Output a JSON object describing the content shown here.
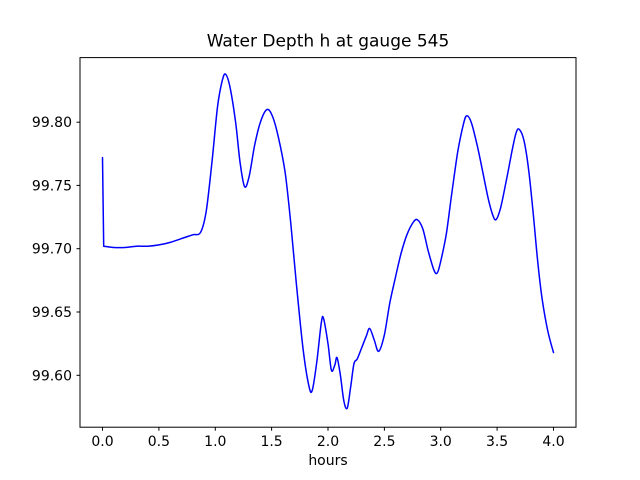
{
  "figure": {
    "background": "#ffffff",
    "frame_color": "#000000",
    "text_color": "#000000"
  },
  "chart_data": {
    "type": "line",
    "title": "Water Depth h at gauge 545",
    "xlabel": "hours",
    "ylabel": "",
    "grid": false,
    "legend": "none",
    "xlim": [
      -0.2,
      4.2
    ],
    "ylim": [
      99.559,
      99.851
    ],
    "xticks": [
      0.0,
      0.5,
      1.0,
      1.5,
      2.0,
      2.5,
      3.0,
      3.5,
      4.0
    ],
    "xtick_labels": [
      "0.0",
      "0.5",
      "1.0",
      "1.5",
      "2.0",
      "2.5",
      "3.0",
      "3.5",
      "4.0"
    ],
    "yticks": [
      99.6,
      99.65,
      99.7,
      99.75,
      99.8
    ],
    "ytick_labels": [
      "99.60",
      "99.65",
      "99.70",
      "99.75",
      "99.80"
    ],
    "series": [
      {
        "name": "water-depth-h",
        "color": "#0000ff",
        "line_width": 1.5,
        "x": [
          0.0,
          0.01,
          0.1,
          0.2,
          0.3,
          0.4,
          0.5,
          0.6,
          0.7,
          0.8,
          0.87,
          0.92,
          0.97,
          1.02,
          1.06,
          1.09,
          1.13,
          1.18,
          1.22,
          1.26,
          1.3,
          1.35,
          1.4,
          1.46,
          1.51,
          1.56,
          1.62,
          1.67,
          1.72,
          1.78,
          1.83,
          1.86,
          1.9,
          1.94,
          1.96,
          2.0,
          2.03,
          2.06,
          2.08,
          2.11,
          2.14,
          2.17,
          2.2,
          2.23,
          2.26,
          2.3,
          2.34,
          2.37,
          2.41,
          2.45,
          2.5,
          2.55,
          2.6,
          2.65,
          2.7,
          2.75,
          2.79,
          2.84,
          2.89,
          2.94,
          2.97,
          3.0,
          3.05,
          3.1,
          3.15,
          3.2,
          3.23,
          3.27,
          3.32,
          3.37,
          3.42,
          3.46,
          3.49,
          3.53,
          3.58,
          3.63,
          3.67,
          3.7,
          3.74,
          3.78,
          3.82,
          3.86,
          3.9,
          3.95,
          4.0
        ],
        "y": [
          99.772,
          99.702,
          99.701,
          99.701,
          99.702,
          99.702,
          99.703,
          99.705,
          99.708,
          99.711,
          99.713,
          99.73,
          99.768,
          99.812,
          99.832,
          99.838,
          99.828,
          99.8,
          99.768,
          99.749,
          99.757,
          99.782,
          99.8,
          99.81,
          99.804,
          99.788,
          99.76,
          99.72,
          99.672,
          99.62,
          99.592,
          99.588,
          99.61,
          99.641,
          99.645,
          99.625,
          99.604,
          99.608,
          99.614,
          99.6,
          99.58,
          99.574,
          99.59,
          99.609,
          99.613,
          99.622,
          99.631,
          99.637,
          99.628,
          99.619,
          99.632,
          99.658,
          99.678,
          99.697,
          99.711,
          99.72,
          99.723,
          99.716,
          99.698,
          99.683,
          99.681,
          99.69,
          99.712,
          99.745,
          99.776,
          99.798,
          99.805,
          99.8,
          99.783,
          99.762,
          99.74,
          99.727,
          99.723,
          99.732,
          99.753,
          99.776,
          99.792,
          99.794,
          99.785,
          99.762,
          99.728,
          99.69,
          99.66,
          99.635,
          99.618
        ]
      }
    ]
  }
}
